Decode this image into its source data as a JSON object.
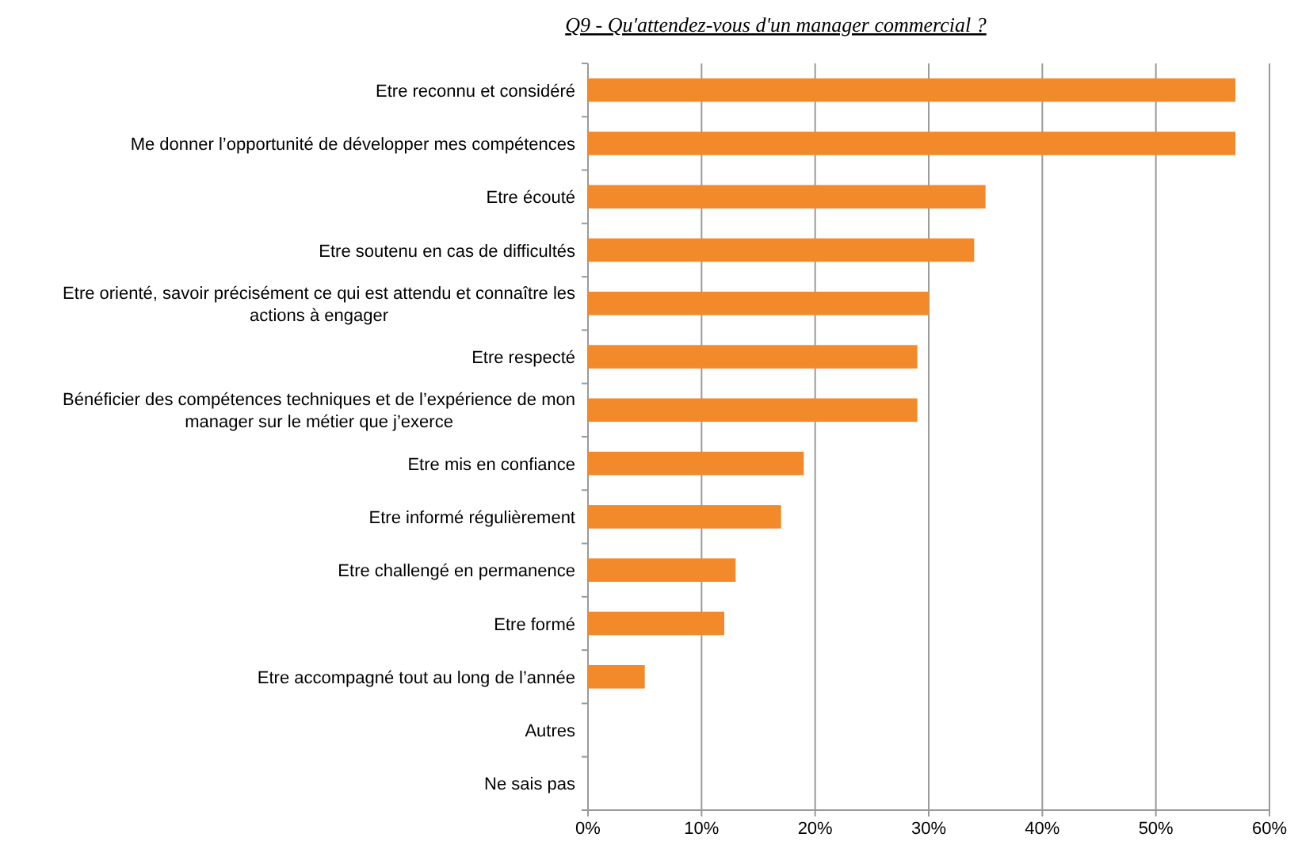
{
  "chart_data": {
    "type": "bar",
    "orientation": "horizontal",
    "title": "Q9 - Qu'attendez-vous d'un manager commercial ?",
    "categories": [
      "Etre reconnu et considéré",
      "Me donner l’opportunité de développer mes compétences",
      "Etre écouté",
      "Etre soutenu en cas de difficultés",
      "Etre orienté, savoir précisément ce qui est attendu et connaître les actions à engager",
      "Etre respecté",
      "Bénéficier des compétences techniques et de l’expérience de mon manager sur le métier que j’exerce",
      "Etre mis en confiance",
      "Etre informé régulièrement",
      "Etre challengé en permanence",
      "Etre formé",
      "Etre accompagné tout au long de l’année",
      "Autres",
      "Ne sais pas"
    ],
    "values": [
      57,
      57,
      35,
      34,
      30,
      29,
      29,
      19,
      17,
      13,
      12,
      5,
      0,
      0
    ],
    "color": "#f28a2c",
    "xlim": [
      0,
      60
    ],
    "xticks": [
      {
        "value": 0,
        "label": "0%"
      },
      {
        "value": 10,
        "label": "10%"
      },
      {
        "value": 20,
        "label": "20%"
      },
      {
        "value": 30,
        "label": "30%"
      },
      {
        "value": 40,
        "label": "40%"
      },
      {
        "value": 50,
        "label": "50%"
      },
      {
        "value": 60,
        "label": "60%"
      }
    ],
    "grid": "x"
  }
}
